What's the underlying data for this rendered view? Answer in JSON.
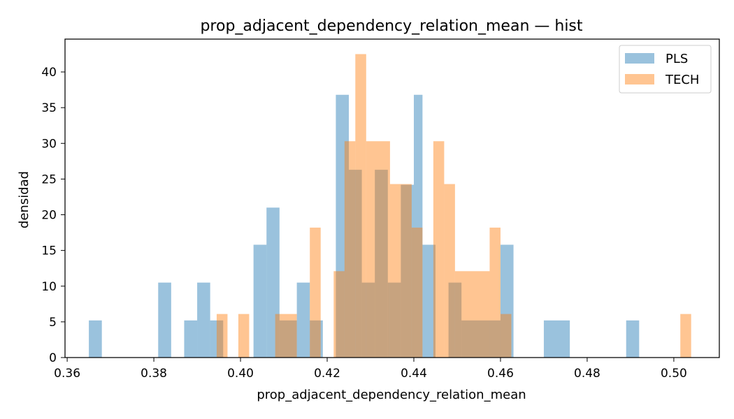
{
  "chart_data": {
    "type": "bar",
    "title": "prop_adjacent_dependency_relation_mean — hist",
    "xlabel": "prop_adjacent_dependency_relation_mean",
    "ylabel": "densidad",
    "xlim": [
      0.3595,
      0.5105
    ],
    "ylim": [
      0,
      44.6
    ],
    "xticks": [
      0.36,
      0.38,
      0.4,
      0.42,
      0.44,
      0.46,
      0.48,
      0.5
    ],
    "yticks": [
      0,
      5,
      10,
      15,
      20,
      25,
      30,
      35,
      40
    ],
    "grid": false,
    "legend_position": "top-right",
    "series": [
      {
        "name": "PLS",
        "color": "#1f77b4",
        "alpha": 0.45,
        "bins": [
          {
            "x0": 0.365,
            "x1": 0.368,
            "y": 5.2
          },
          {
            "x0": 0.381,
            "x1": 0.384,
            "y": 10.5
          },
          {
            "x0": 0.387,
            "x1": 0.39,
            "y": 5.2
          },
          {
            "x0": 0.39,
            "x1": 0.393,
            "y": 10.5
          },
          {
            "x0": 0.393,
            "x1": 0.396,
            "y": 5.2
          },
          {
            "x0": 0.403,
            "x1": 0.406,
            "y": 15.8
          },
          {
            "x0": 0.406,
            "x1": 0.409,
            "y": 21.0
          },
          {
            "x0": 0.409,
            "x1": 0.413,
            "y": 5.2
          },
          {
            "x0": 0.413,
            "x1": 0.416,
            "y": 10.5
          },
          {
            "x0": 0.416,
            "x1": 0.419,
            "y": 5.2
          },
          {
            "x0": 0.422,
            "x1": 0.425,
            "y": 36.8
          },
          {
            "x0": 0.425,
            "x1": 0.428,
            "y": 26.3
          },
          {
            "x0": 0.428,
            "x1": 0.431,
            "y": 10.5
          },
          {
            "x0": 0.431,
            "x1": 0.434,
            "y": 26.3
          },
          {
            "x0": 0.434,
            "x1": 0.437,
            "y": 10.5
          },
          {
            "x0": 0.437,
            "x1": 0.44,
            "y": 24.2
          },
          {
            "x0": 0.44,
            "x1": 0.442,
            "y": 36.8
          },
          {
            "x0": 0.442,
            "x1": 0.445,
            "y": 15.8
          },
          {
            "x0": 0.448,
            "x1": 0.451,
            "y": 10.5
          },
          {
            "x0": 0.451,
            "x1": 0.46,
            "y": 5.2
          },
          {
            "x0": 0.46,
            "x1": 0.463,
            "y": 15.8
          },
          {
            "x0": 0.47,
            "x1": 0.476,
            "y": 5.2
          },
          {
            "x0": 0.489,
            "x1": 0.492,
            "y": 5.2
          }
        ]
      },
      {
        "name": "TECH",
        "color": "#ff7f0e",
        "alpha": 0.45,
        "bins": [
          {
            "x0": 0.3945,
            "x1": 0.397,
            "y": 6.1
          },
          {
            "x0": 0.3995,
            "x1": 0.402,
            "y": 6.1
          },
          {
            "x0": 0.408,
            "x1": 0.413,
            "y": 6.1
          },
          {
            "x0": 0.416,
            "x1": 0.4185,
            "y": 18.2
          },
          {
            "x0": 0.4215,
            "x1": 0.424,
            "y": 12.1
          },
          {
            "x0": 0.424,
            "x1": 0.4265,
            "y": 30.3
          },
          {
            "x0": 0.4265,
            "x1": 0.429,
            "y": 42.5
          },
          {
            "x0": 0.429,
            "x1": 0.4345,
            "y": 30.3
          },
          {
            "x0": 0.4345,
            "x1": 0.4395,
            "y": 24.3
          },
          {
            "x0": 0.4395,
            "x1": 0.442,
            "y": 18.2
          },
          {
            "x0": 0.4445,
            "x1": 0.447,
            "y": 30.3
          },
          {
            "x0": 0.447,
            "x1": 0.4495,
            "y": 24.3
          },
          {
            "x0": 0.4495,
            "x1": 0.4575,
            "y": 12.1
          },
          {
            "x0": 0.4575,
            "x1": 0.46,
            "y": 18.2
          },
          {
            "x0": 0.46,
            "x1": 0.4625,
            "y": 6.1
          },
          {
            "x0": 0.5015,
            "x1": 0.504,
            "y": 6.1
          }
        ]
      }
    ]
  }
}
